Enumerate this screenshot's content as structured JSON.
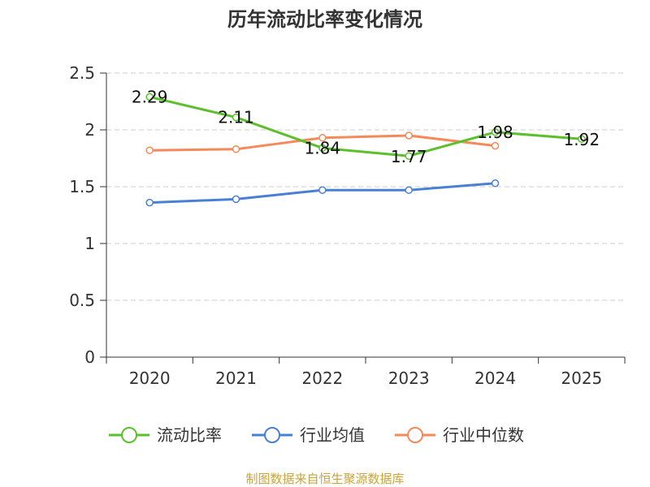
{
  "chart_data": {
    "type": "line",
    "title": "历年流动比率变化情况",
    "categories": [
      "2020",
      "2021",
      "2022",
      "2023",
      "2024",
      "2025"
    ],
    "y_ticks": [
      "0",
      "0.5",
      "1",
      "1.5",
      "2",
      "2.5"
    ],
    "ylim": [
      0,
      2.5
    ],
    "grid": true,
    "legend_position": "bottom",
    "series": [
      {
        "name": "流动比率",
        "color": "#5cc02c",
        "values": [
          2.29,
          2.11,
          1.84,
          1.77,
          1.98,
          1.92
        ],
        "labels": [
          "2.29",
          "2.11",
          "1.84",
          "1.77",
          "1.98",
          "1.92"
        ]
      },
      {
        "name": "行业均值",
        "color": "#4a7fd6",
        "values": [
          1.36,
          1.39,
          1.47,
          1.47,
          1.53,
          null
        ]
      },
      {
        "name": "行业中位数",
        "color": "#f5895a",
        "values": [
          1.82,
          1.83,
          1.93,
          1.95,
          1.86,
          null
        ]
      }
    ],
    "source": "制图数据来自恒生聚源数据库"
  }
}
